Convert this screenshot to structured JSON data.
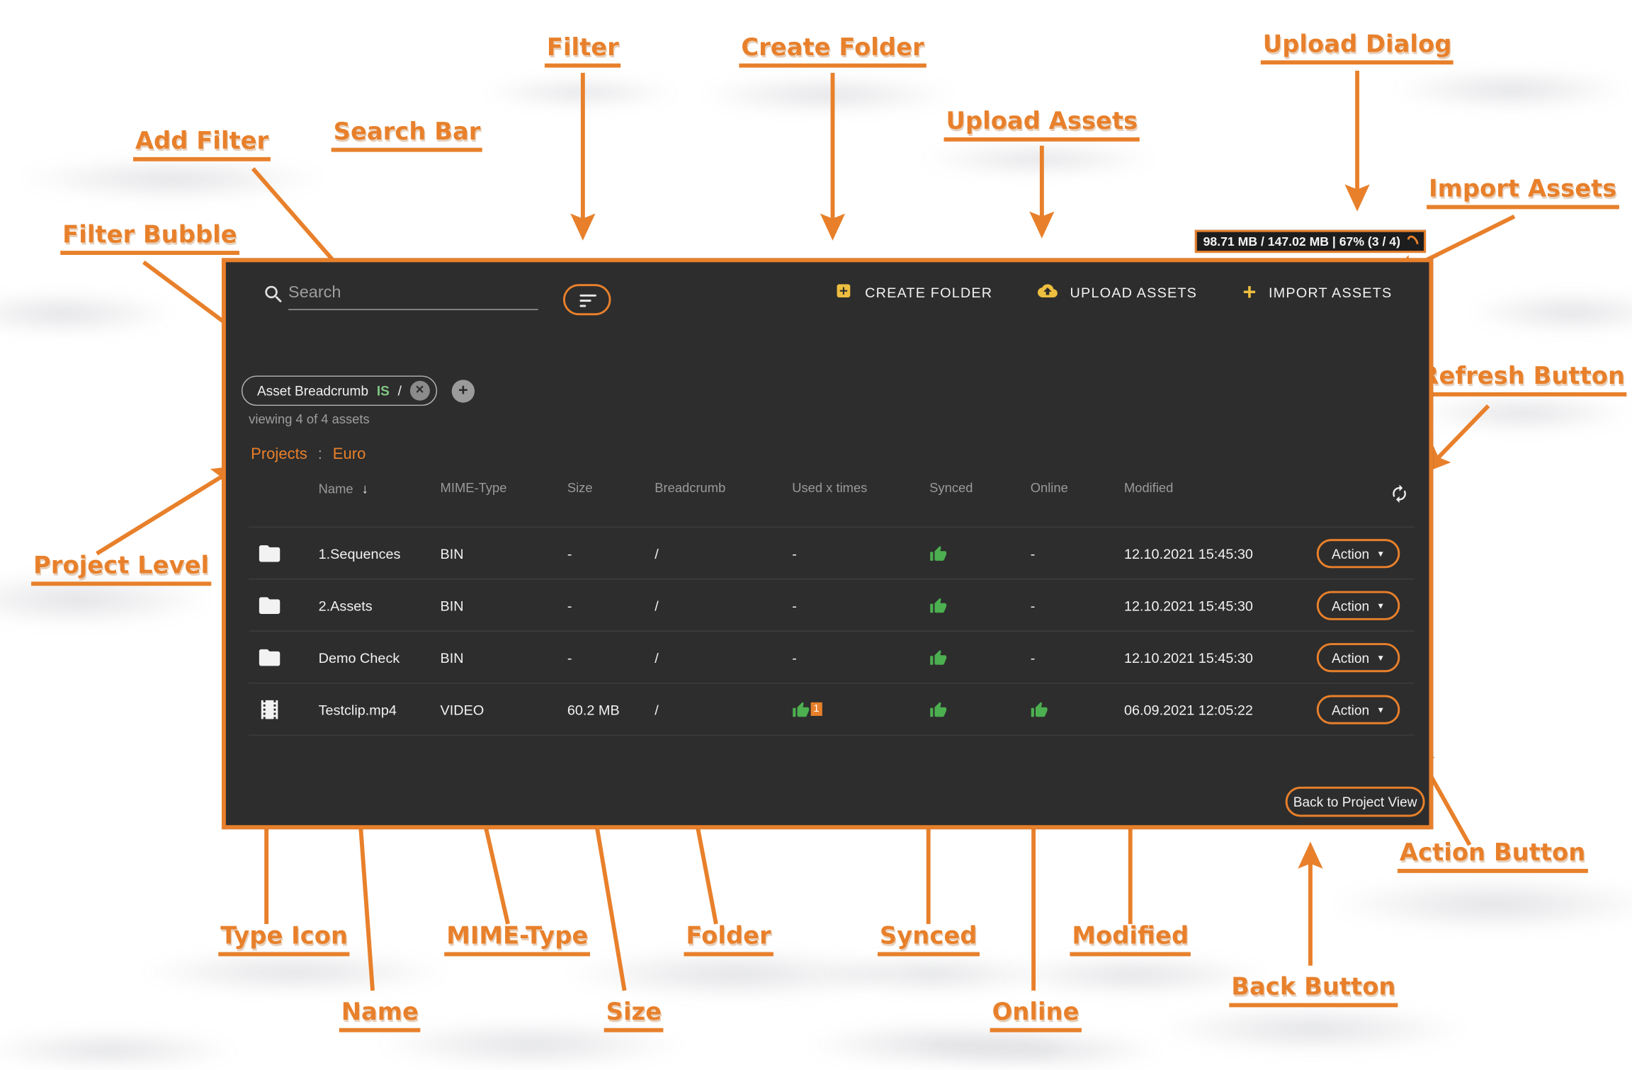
{
  "annotations": {
    "filter": "Filter",
    "create_folder": "Create Folder",
    "upload_dialog": "Upload Dialog",
    "add_filter": "Add Filter",
    "search_bar": "Search Bar",
    "upload_assets": "Upload Assets",
    "import_assets": "Import Assets",
    "filter_bubble": "Filter Bubble",
    "refresh_button": "Refresh Button",
    "project_level": "Project Level",
    "type_icon": "Type Icon",
    "name": "Name",
    "mime_type": "MIME-Type",
    "size": "Size",
    "folder": "Folder",
    "synced": "Synced",
    "online": "Online",
    "modified": "Modified",
    "back_button": "Back Button",
    "action_button": "Action Button"
  },
  "app": {
    "upload_badge": "98.71 MB / 147.02 MB | 67% (3 / 4)",
    "search_placeholder": "Search",
    "toolbar": {
      "create_folder": "CREATE FOLDER",
      "upload_assets": "UPLOAD ASSETS",
      "import_assets": "IMPORT ASSETS"
    },
    "filter_chip": {
      "field": "Asset Breadcrumb",
      "operator": "IS",
      "value": "/"
    },
    "viewing": "viewing 4 of 4 assets",
    "breadcrumb": {
      "root": "Projects",
      "separator": ":",
      "current": "Euro"
    },
    "table": {
      "columns": [
        "Name",
        "MIME-Type",
        "Size",
        "Breadcrumb",
        "Used x times",
        "Synced",
        "Online",
        "Modified"
      ],
      "rows": [
        {
          "type": "folder",
          "name": "1.Sequences",
          "mime": "BIN",
          "size": "-",
          "breadcrumb": "/",
          "used": "-",
          "synced": "yes",
          "online": "-",
          "modified": "12.10.2021 15:45:30",
          "action": "Action"
        },
        {
          "type": "folder",
          "name": "2.Assets",
          "mime": "BIN",
          "size": "-",
          "breadcrumb": "/",
          "used": "-",
          "synced": "yes",
          "online": "-",
          "modified": "12.10.2021 15:45:30",
          "action": "Action"
        },
        {
          "type": "folder",
          "name": "Demo Check",
          "mime": "BIN",
          "size": "-",
          "breadcrumb": "/",
          "used": "-",
          "synced": "yes",
          "online": "-",
          "modified": "12.10.2021 15:45:30",
          "action": "Action"
        },
        {
          "type": "video",
          "name": "Testclip.mp4",
          "mime": "VIDEO",
          "size": "60.2 MB",
          "breadcrumb": "/",
          "used": "1",
          "synced": "yes",
          "online": "yes",
          "modified": "06.09.2021 12:05:22",
          "action": "Action"
        }
      ]
    },
    "back_button": "Back to Project View"
  },
  "colors": {
    "annotation_orange": "#E8802B",
    "accent_yellow": "#EDBE3F",
    "success_green": "#4CAF50",
    "chip_operator_green": "#81C784",
    "panel_bg": "#2D2D2D"
  }
}
